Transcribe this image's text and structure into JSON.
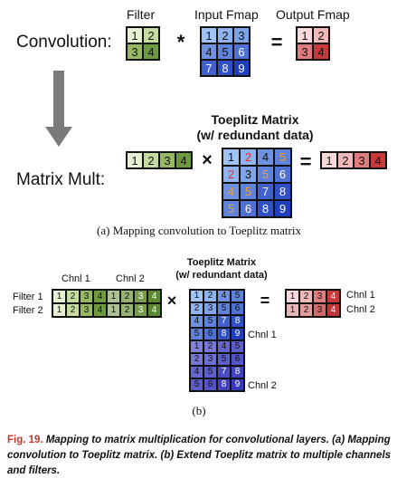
{
  "part_a": {
    "labels": {
      "filter": "Filter",
      "input_fmap": "Input Fmap",
      "output_fmap": "Output Fmap",
      "convolution": "Convolution:",
      "toeplitz_title_1": "Toeplitz Matrix",
      "toeplitz_title_2": "(w/ redundant data)",
      "matrix_mult": "Matrix Mult:"
    },
    "operators": {
      "conv": "*",
      "equals": "=",
      "times": "×"
    },
    "filter_cells": [
      "1",
      "2",
      "3",
      "4"
    ],
    "input_cells": [
      "1",
      "2",
      "3",
      "4",
      "5",
      "6",
      "7",
      "8",
      "9"
    ],
    "output_cells": [
      "1",
      "2",
      "3",
      "4"
    ],
    "filter_row": [
      "1",
      "2",
      "3",
      "4"
    ],
    "toeplitz_cells": [
      [
        "1",
        "2",
        "4",
        "5"
      ],
      [
        "2",
        "3",
        "5",
        "6"
      ],
      [
        "4",
        "5",
        "7",
        "8"
      ],
      [
        "5",
        "6",
        "8",
        "9"
      ]
    ],
    "output_row": [
      "1",
      "2",
      "3",
      "4"
    ],
    "caption": "(a) Mapping convolution to Toeplitz matrix"
  },
  "part_b": {
    "labels": {
      "chnl1_top": "Chnl 1",
      "chnl2_top": "Chnl 2",
      "filter1": "Filter 1",
      "filter2": "Filter 2",
      "toeplitz_title_1": "Toeplitz Matrix",
      "toeplitz_title_2": "(w/ redundant data)",
      "chnl1_side": "Chnl 1",
      "chnl2_side": "Chnl 2",
      "out_chnl1": "Chnl 1",
      "out_chnl2": "Chnl 2"
    },
    "operators": {
      "times": "×",
      "equals": "="
    },
    "filter_rows": [
      [
        "1",
        "2",
        "3",
        "4",
        "1",
        "2",
        "3",
        "4"
      ],
      [
        "1",
        "2",
        "3",
        "4",
        "1",
        "2",
        "3",
        "4"
      ]
    ],
    "toeplitz_rows": [
      [
        "1",
        "2",
        "4",
        "5"
      ],
      [
        "2",
        "3",
        "5",
        "6"
      ],
      [
        "4",
        "5",
        "7",
        "8"
      ],
      [
        "5",
        "6",
        "8",
        "9"
      ],
      [
        "1",
        "2",
        "4",
        "5"
      ],
      [
        "2",
        "3",
        "5",
        "6"
      ],
      [
        "4",
        "5",
        "7",
        "8"
      ],
      [
        "5",
        "6",
        "8",
        "9"
      ]
    ],
    "output_rows": [
      [
        "1",
        "2",
        "3",
        "4"
      ],
      [
        "1",
        "2",
        "3",
        "4"
      ]
    ],
    "caption": "(b)"
  },
  "figure_caption": {
    "number": "Fig. 19.",
    "text": " Mapping to matrix multiplication for convolutional layers. (a) Mapping convolution to Toeplitz matrix. (b) Extend Toeplitz matrix to multiple channels and filters."
  },
  "colors": {
    "filter_green": [
      "#e6f0d2",
      "#c5dba0",
      "#94b962",
      "#6d9a3e"
    ],
    "input_blue_light": "#9ec4f5",
    "input_blue_dark": "#1f3fbf",
    "output_red": [
      "#f9dada",
      "#f0b8b8",
      "#e07c7c",
      "#c73a3a"
    ],
    "toeplitz_highlight_red": "#e0302e",
    "toeplitz_highlight_orange": "#e8a040"
  }
}
